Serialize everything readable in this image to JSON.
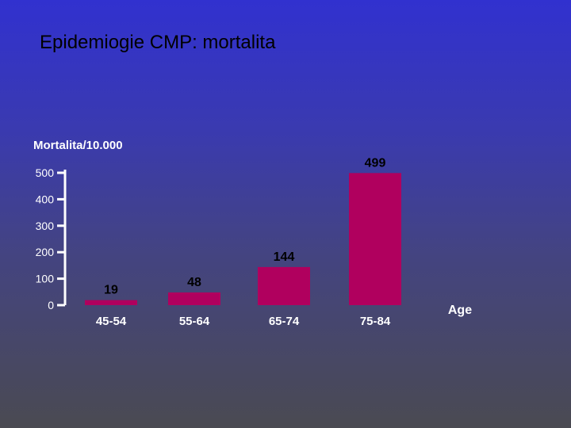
{
  "slide": {
    "title": "Epidemiogie CMP: mortalita"
  },
  "chart_data": {
    "type": "bar",
    "categories": [
      "45-54",
      "55-64",
      "65-74",
      "75-84"
    ],
    "values": [
      19,
      48,
      144,
      499
    ],
    "ylabel": "Mortalita/10.000",
    "xlabel": "Age",
    "yticks": [
      0,
      100,
      200,
      300,
      400,
      500
    ],
    "ylim": [
      0,
      500
    ],
    "grid": false,
    "colors": {
      "bar": "#b0005e",
      "axis": "#ffffff"
    }
  }
}
